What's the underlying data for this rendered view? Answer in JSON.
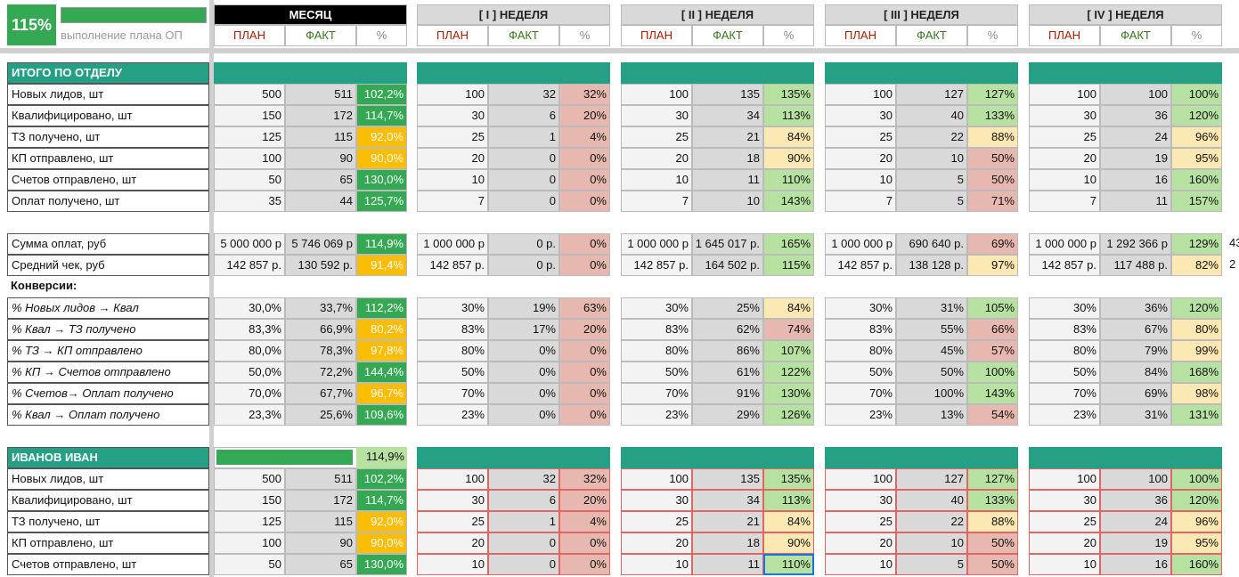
{
  "summary": {
    "percent": "115%",
    "caption": "выполнение плана ОП"
  },
  "blocks": [
    {
      "title": "МЕСЯЦ",
      "columns": [
        "ПЛАН",
        "ФАКТ",
        "%"
      ]
    },
    {
      "title": "[ I ] НЕДЕЛЯ",
      "columns": [
        "ПЛАН",
        "ФАКТ",
        "%"
      ]
    },
    {
      "title": "[ II ] НЕДЕЛЯ",
      "columns": [
        "ПЛАН",
        "ФАКТ",
        "%"
      ]
    },
    {
      "title": "[ III ] НЕДЕЛЯ",
      "columns": [
        "ПЛАН",
        "ФАКТ",
        "%"
      ]
    },
    {
      "title": "[ IV ] НЕДЕЛЯ",
      "columns": [
        "ПЛАН",
        "ФАКТ",
        "%"
      ]
    }
  ],
  "sections": [
    {
      "title": "ИТОГО ПО ОТДЕЛУ",
      "groups": [
        {
          "rows": [
            {
              "label": "Новых лидов, шт",
              "cells": [
                [
                  "500",
                  "511",
                  "102,2%"
                ],
                [
                  "100",
                  "32",
                  "32%"
                ],
                [
                  "100",
                  "135",
                  "135%"
                ],
                [
                  "100",
                  "127",
                  "127%"
                ],
                [
                  "100",
                  "100",
                  "100%"
                ]
              ]
            },
            {
              "label": "Квалифицировано, шт",
              "cells": [
                [
                  "150",
                  "172",
                  "114,7%"
                ],
                [
                  "30",
                  "6",
                  "20%"
                ],
                [
                  "30",
                  "34",
                  "113%"
                ],
                [
                  "30",
                  "40",
                  "133%"
                ],
                [
                  "30",
                  "36",
                  "120%"
                ]
              ]
            },
            {
              "label": "ТЗ получено, шт",
              "cells": [
                [
                  "125",
                  "115",
                  "92,0%"
                ],
                [
                  "25",
                  "1",
                  "4%"
                ],
                [
                  "25",
                  "21",
                  "84%"
                ],
                [
                  "25",
                  "22",
                  "88%"
                ],
                [
                  "25",
                  "24",
                  "96%"
                ]
              ]
            },
            {
              "label": "КП отправлено, шт",
              "cells": [
                [
                  "100",
                  "90",
                  "90,0%"
                ],
                [
                  "20",
                  "0",
                  "0%"
                ],
                [
                  "20",
                  "18",
                  "90%"
                ],
                [
                  "20",
                  "10",
                  "50%"
                ],
                [
                  "20",
                  "19",
                  "95%"
                ]
              ]
            },
            {
              "label": "Счетов отправлено, шт",
              "cells": [
                [
                  "50",
                  "65",
                  "130,0%"
                ],
                [
                  "10",
                  "0",
                  "0%"
                ],
                [
                  "10",
                  "11",
                  "110%"
                ],
                [
                  "10",
                  "5",
                  "50%"
                ],
                [
                  "10",
                  "16",
                  "160%"
                ]
              ]
            },
            {
              "label": "Оплат получено, шт",
              "cells": [
                [
                  "35",
                  "44",
                  "125,7%"
                ],
                [
                  "7",
                  "0",
                  "0%"
                ],
                [
                  "7",
                  "10",
                  "143%"
                ],
                [
                  "7",
                  "5",
                  "71%"
                ],
                [
                  "7",
                  "11",
                  "157%"
                ]
              ]
            }
          ]
        },
        {
          "rows": [
            {
              "label": "Сумма оплат, руб",
              "cells": [
                [
                  "5 000 000 р",
                  "5 746 069 р",
                  "114,9%"
                ],
                [
                  "1 000 000 р",
                  "0 р.",
                  "0%"
                ],
                [
                  "1 000 000 р",
                  "1 645 017 р.",
                  "165%"
                ],
                [
                  "1 000 000 р",
                  "690 640 р.",
                  "69%"
                ],
                [
                  "1 000 000 р",
                  "1 292 366 р",
                  "129%"
                ]
              ],
              "next": "43"
            },
            {
              "label": "Средний чек, руб",
              "cells": [
                [
                  "142 857 р.",
                  "130 592 р.",
                  "91,4%"
                ],
                [
                  "142 857 р.",
                  "0 р.",
                  "0%"
                ],
                [
                  "142 857 р.",
                  "164 502 р.",
                  "115%"
                ],
                [
                  "142 857 р.",
                  "138 128 р.",
                  "97%"
                ],
                [
                  "142 857 р.",
                  "117 488 р.",
                  "82%"
                ]
              ],
              "next": "2"
            }
          ]
        },
        {
          "title": "Конверсии:",
          "rows": [
            {
              "label": "% Новых лидов → Квал",
              "cells": [
                [
                  "30,0%",
                  "33,7%",
                  "112,2%"
                ],
                [
                  "30%",
                  "19%",
                  "63%"
                ],
                [
                  "30%",
                  "25%",
                  "84%"
                ],
                [
                  "30%",
                  "31%",
                  "105%"
                ],
                [
                  "30%",
                  "36%",
                  "120%"
                ]
              ]
            },
            {
              "label": "% Квал → ТЗ получено",
              "cells": [
                [
                  "83,3%",
                  "66,9%",
                  "80,2%"
                ],
                [
                  "83%",
                  "17%",
                  "20%"
                ],
                [
                  "83%",
                  "62%",
                  "74%"
                ],
                [
                  "83%",
                  "55%",
                  "66%"
                ],
                [
                  "83%",
                  "67%",
                  "80%"
                ]
              ]
            },
            {
              "label": "% ТЗ → КП отправлено",
              "cells": [
                [
                  "80,0%",
                  "78,3%",
                  "97,8%"
                ],
                [
                  "80%",
                  "0%",
                  "0%"
                ],
                [
                  "80%",
                  "86%",
                  "107%"
                ],
                [
                  "80%",
                  "45%",
                  "57%"
                ],
                [
                  "80%",
                  "79%",
                  "99%"
                ]
              ]
            },
            {
              "label": "% КП → Счетов отправлено",
              "cells": [
                [
                  "50,0%",
                  "72,2%",
                  "144,4%"
                ],
                [
                  "50%",
                  "0%",
                  "0%"
                ],
                [
                  "50%",
                  "61%",
                  "122%"
                ],
                [
                  "50%",
                  "50%",
                  "100%"
                ],
                [
                  "50%",
                  "84%",
                  "168%"
                ]
              ]
            },
            {
              "label": "% Счетов→ Оплат получено",
              "cells": [
                [
                  "70,0%",
                  "67,7%",
                  "96,7%"
                ],
                [
                  "70%",
                  "0%",
                  "0%"
                ],
                [
                  "70%",
                  "91%",
                  "130%"
                ],
                [
                  "70%",
                  "100%",
                  "143%"
                ],
                [
                  "70%",
                  "69%",
                  "98%"
                ]
              ]
            },
            {
              "label": "% Квал → Оплат получено",
              "cells": [
                [
                  "23,3%",
                  "25,6%",
                  "109,6%"
                ],
                [
                  "23%",
                  "0%",
                  "0%"
                ],
                [
                  "23%",
                  "29%",
                  "126%"
                ],
                [
                  "23%",
                  "13%",
                  "54%"
                ],
                [
                  "23%",
                  "31%",
                  "131%"
                ]
              ]
            }
          ]
        }
      ]
    },
    {
      "title": "ИВАНОВ ИВАН",
      "progress": "114,9%",
      "groups": [
        {
          "rows": [
            {
              "label": "Новых лидов, шт",
              "cells": [
                [
                  "500",
                  "511",
                  "102,2%"
                ],
                [
                  "100",
                  "32",
                  "32%"
                ],
                [
                  "100",
                  "135",
                  "135%"
                ],
                [
                  "100",
                  "127",
                  "127%"
                ],
                [
                  "100",
                  "100",
                  "100%"
                ]
              ]
            },
            {
              "label": "Квалифицировано, шт",
              "cells": [
                [
                  "150",
                  "172",
                  "114,7%"
                ],
                [
                  "30",
                  "6",
                  "20%"
                ],
                [
                  "30",
                  "34",
                  "113%"
                ],
                [
                  "30",
                  "40",
                  "133%"
                ],
                [
                  "30",
                  "36",
                  "120%"
                ]
              ]
            },
            {
              "label": "ТЗ получено, шт",
              "cells": [
                [
                  "125",
                  "115",
                  "92,0%"
                ],
                [
                  "25",
                  "1",
                  "4%"
                ],
                [
                  "25",
                  "21",
                  "84%"
                ],
                [
                  "25",
                  "22",
                  "88%"
                ],
                [
                  "25",
                  "24",
                  "96%"
                ]
              ]
            },
            {
              "label": "КП отправлено, шт",
              "cells": [
                [
                  "100",
                  "90",
                  "90,0%"
                ],
                [
                  "20",
                  "0",
                  "0%"
                ],
                [
                  "20",
                  "18",
                  "90%"
                ],
                [
                  "20",
                  "10",
                  "50%"
                ],
                [
                  "20",
                  "19",
                  "95%"
                ]
              ]
            },
            {
              "label": "Счетов отправлено, шт",
              "cells": [
                [
                  "50",
                  "65",
                  "130,0%"
                ],
                [
                  "10",
                  "0",
                  "0%"
                ],
                [
                  "10",
                  "11",
                  "110%"
                ],
                [
                  "10",
                  "5",
                  "50%"
                ],
                [
                  "10",
                  "16",
                  "160%"
                ]
              ]
            }
          ]
        }
      ]
    }
  ]
}
